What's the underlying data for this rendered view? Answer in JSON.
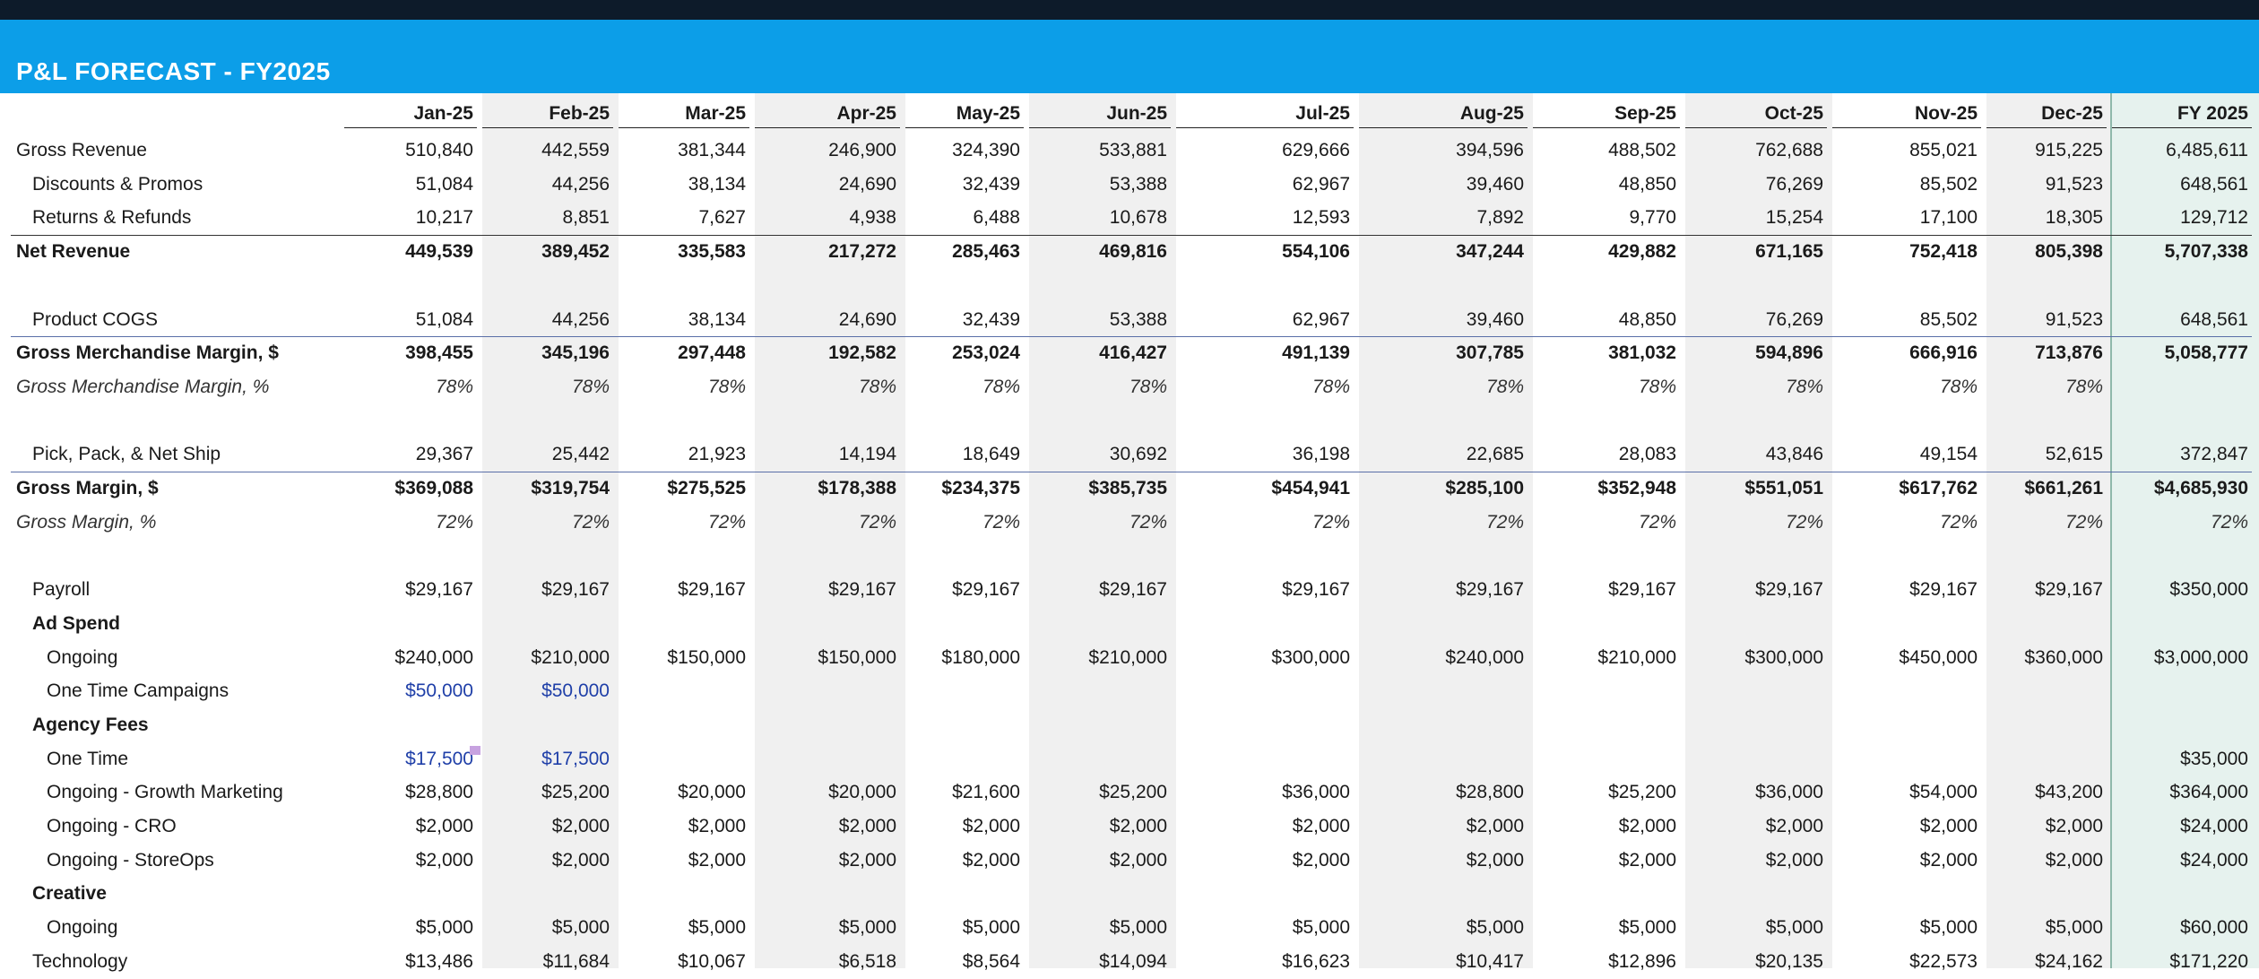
{
  "title": "P&L FORECAST - FY2025",
  "columns": [
    "Jan-25",
    "Feb-25",
    "Mar-25",
    "Apr-25",
    "May-25",
    "Jun-25",
    "Jul-25",
    "Aug-25",
    "Sep-25",
    "Oct-25",
    "Nov-25",
    "Dec-25",
    "FY 2025"
  ],
  "rows": [
    {
      "label": "Gross Revenue",
      "indent": 0,
      "style": "normal",
      "values": [
        "510,840",
        "442,559",
        "381,344",
        "246,900",
        "324,390",
        "533,881",
        "629,666",
        "394,596",
        "488,502",
        "762,688",
        "855,021",
        "915,225",
        "6,485,611"
      ]
    },
    {
      "label": "Discounts & Promos",
      "indent": 1,
      "style": "normal",
      "values": [
        "51,084",
        "44,256",
        "38,134",
        "24,690",
        "32,439",
        "53,388",
        "62,967",
        "39,460",
        "48,850",
        "76,269",
        "85,502",
        "91,523",
        "648,561"
      ]
    },
    {
      "label": "Returns & Refunds",
      "indent": 1,
      "style": "normal",
      "values": [
        "10,217",
        "8,851",
        "7,627",
        "4,938",
        "6,488",
        "10,678",
        "12,593",
        "7,892",
        "9,770",
        "15,254",
        "17,100",
        "18,305",
        "129,712"
      ]
    },
    {
      "label": "Net Revenue",
      "indent": 0,
      "style": "bold",
      "values": [
        "449,539",
        "389,452",
        "335,583",
        "217,272",
        "285,463",
        "469,816",
        "554,106",
        "347,244",
        "429,882",
        "671,165",
        "752,418",
        "805,398",
        "5,707,338"
      ]
    },
    {
      "label": "",
      "indent": 0,
      "style": "blank",
      "values": []
    },
    {
      "label": "Product COGS",
      "indent": 1,
      "style": "normal",
      "values": [
        "51,084",
        "44,256",
        "38,134",
        "24,690",
        "32,439",
        "53,388",
        "62,967",
        "39,460",
        "48,850",
        "76,269",
        "85,502",
        "91,523",
        "648,561"
      ]
    },
    {
      "label": "Gross Merchandise Margin, $",
      "indent": 0,
      "style": "bold",
      "values": [
        "398,455",
        "345,196",
        "297,448",
        "192,582",
        "253,024",
        "416,427",
        "491,139",
        "307,785",
        "381,032",
        "594,896",
        "666,916",
        "713,876",
        "5,058,777"
      ]
    },
    {
      "label": "Gross Merchandise Margin, %",
      "indent": 0,
      "style": "italic",
      "values": [
        "78%",
        "78%",
        "78%",
        "78%",
        "78%",
        "78%",
        "78%",
        "78%",
        "78%",
        "78%",
        "78%",
        "78%",
        ""
      ]
    },
    {
      "label": "",
      "indent": 0,
      "style": "blank",
      "values": []
    },
    {
      "label": "Pick, Pack, & Net Ship",
      "indent": 1,
      "style": "normal",
      "values": [
        "29,367",
        "25,442",
        "21,923",
        "14,194",
        "18,649",
        "30,692",
        "36,198",
        "22,685",
        "28,083",
        "43,846",
        "49,154",
        "52,615",
        "372,847"
      ]
    },
    {
      "label": "Gross Margin, $",
      "indent": 0,
      "style": "bold",
      "values": [
        "$369,088",
        "$319,754",
        "$275,525",
        "$178,388",
        "$234,375",
        "$385,735",
        "$454,941",
        "$285,100",
        "$352,948",
        "$551,051",
        "$617,762",
        "$661,261",
        "$4,685,930"
      ]
    },
    {
      "label": "Gross Margin, %",
      "indent": 0,
      "style": "italic",
      "values": [
        "72%",
        "72%",
        "72%",
        "72%",
        "72%",
        "72%",
        "72%",
        "72%",
        "72%",
        "72%",
        "72%",
        "72%",
        "72%"
      ]
    },
    {
      "label": "",
      "indent": 0,
      "style": "blank",
      "values": []
    },
    {
      "label": "Payroll",
      "indent": 1,
      "style": "normal",
      "values": [
        "$29,167",
        "$29,167",
        "$29,167",
        "$29,167",
        "$29,167",
        "$29,167",
        "$29,167",
        "$29,167",
        "$29,167",
        "$29,167",
        "$29,167",
        "$29,167",
        "$350,000"
      ]
    },
    {
      "label": "Ad Spend",
      "indent": 1,
      "style": "bold",
      "values": []
    },
    {
      "label": "Ongoing",
      "indent": 2,
      "style": "normal",
      "values": [
        "$240,000",
        "$210,000",
        "$150,000",
        "$150,000",
        "$180,000",
        "$210,000",
        "$300,000",
        "$240,000",
        "$210,000",
        "$300,000",
        "$450,000",
        "$360,000",
        "$3,000,000"
      ]
    },
    {
      "label": "One Time Campaigns",
      "indent": 2,
      "style": "blue",
      "values": [
        "$50,000",
        "$50,000",
        "",
        "",
        "",
        "",
        "",
        "",
        "",
        "",
        "",
        "",
        ""
      ]
    },
    {
      "label": "Agency Fees",
      "indent": 1,
      "style": "bold",
      "values": []
    },
    {
      "label": "One Time",
      "indent": 2,
      "style": "blue",
      "values": [
        "$17,500",
        "$17,500",
        "",
        "",
        "",
        "",
        "",
        "",
        "",
        "",
        "",
        "",
        "$35,000"
      ]
    },
    {
      "label": "Ongoing - Growth Marketing",
      "indent": 2,
      "style": "normal",
      "values": [
        "$28,800",
        "$25,200",
        "$20,000",
        "$20,000",
        "$21,600",
        "$25,200",
        "$36,000",
        "$28,800",
        "$25,200",
        "$36,000",
        "$54,000",
        "$43,200",
        "$364,000"
      ]
    },
    {
      "label": "Ongoing - CRO",
      "indent": 2,
      "style": "normal",
      "values": [
        "$2,000",
        "$2,000",
        "$2,000",
        "$2,000",
        "$2,000",
        "$2,000",
        "$2,000",
        "$2,000",
        "$2,000",
        "$2,000",
        "$2,000",
        "$2,000",
        "$24,000"
      ]
    },
    {
      "label": "Ongoing - StoreOps",
      "indent": 2,
      "style": "normal",
      "values": [
        "$2,000",
        "$2,000",
        "$2,000",
        "$2,000",
        "$2,000",
        "$2,000",
        "$2,000",
        "$2,000",
        "$2,000",
        "$2,000",
        "$2,000",
        "$2,000",
        "$24,000"
      ]
    },
    {
      "label": "Creative",
      "indent": 1,
      "style": "bold",
      "values": []
    },
    {
      "label": "Ongoing",
      "indent": 2,
      "style": "normal",
      "values": [
        "$5,000",
        "$5,000",
        "$5,000",
        "$5,000",
        "$5,000",
        "$5,000",
        "$5,000",
        "$5,000",
        "$5,000",
        "$5,000",
        "$5,000",
        "$5,000",
        "$60,000"
      ]
    },
    {
      "label": "Technology",
      "indent": 1,
      "style": "normal",
      "values": [
        "$13,486",
        "$11,684",
        "$10,067",
        "$6,518",
        "$8,564",
        "$14,094",
        "$16,623",
        "$10,417",
        "$12,896",
        "$20,135",
        "$22,573",
        "$24,162",
        "$171,220"
      ]
    }
  ],
  "colors": {
    "banner": "#0c9ee8",
    "banner_text": "#ffffff",
    "topbar": "#0d1b2a",
    "shade_gray": "#f0f0f0",
    "shade_green": "#e6f2ee",
    "blue_input": "#1f3fa8"
  }
}
